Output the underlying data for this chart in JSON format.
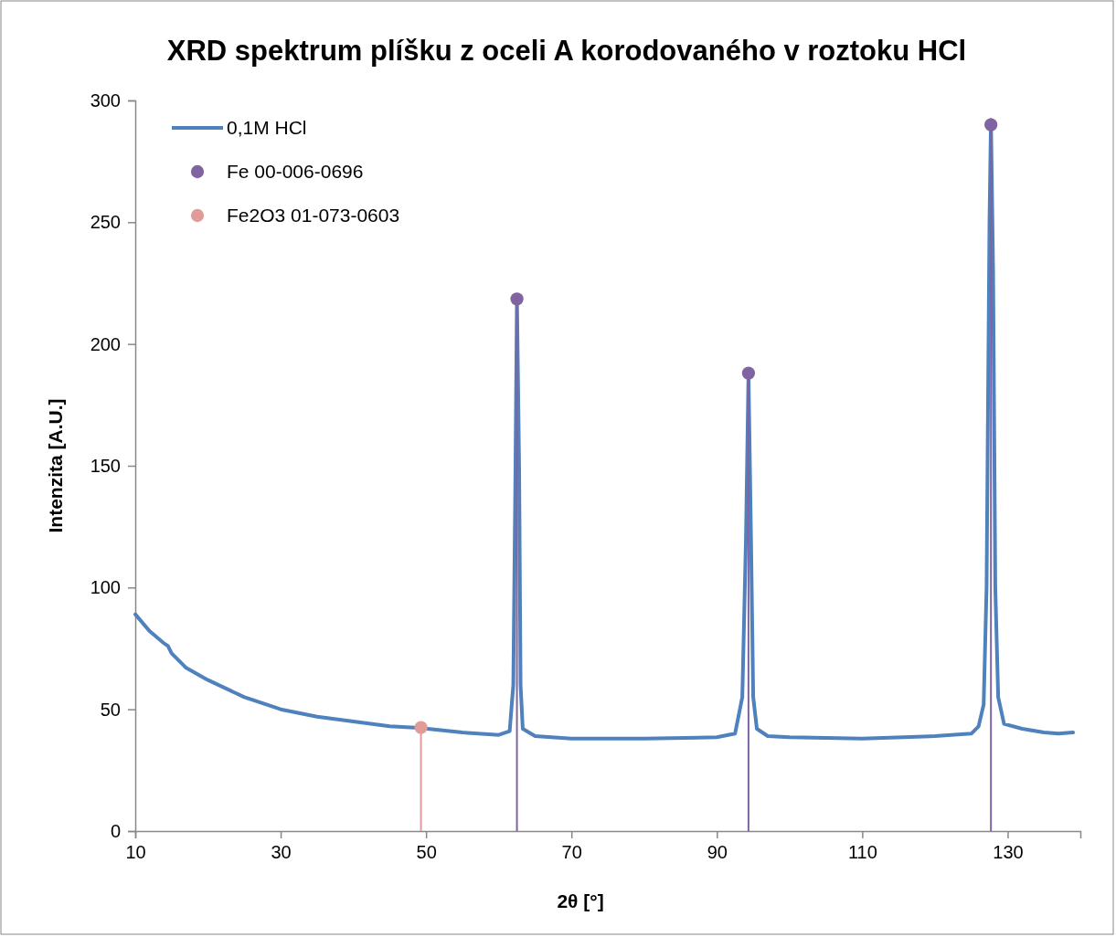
{
  "chart_data": {
    "type": "line",
    "title": "XRD spektrum plíšku z oceli A korodovaného v roztoku HCl",
    "xlabel": "2θ [°]",
    "ylabel": "Intenzita [A.U.]",
    "xlim": [
      10,
      140
    ],
    "xticks": [
      10,
      30,
      50,
      70,
      90,
      110,
      130
    ],
    "ylim": [
      0,
      300
    ],
    "yticks": [
      0,
      50,
      100,
      150,
      200,
      250,
      300
    ],
    "grid": false,
    "legend": "top left",
    "series": [
      {
        "name": "0,1M HCl",
        "color": "#4f81bd",
        "marker": "none",
        "line_style": "solid",
        "x": [
          10,
          12,
          14,
          14.5,
          15,
          17,
          20,
          25,
          30,
          35,
          40,
          45,
          49,
          55,
          60,
          61.5,
          62,
          62.3,
          62.5,
          62.8,
          63,
          63.3,
          65,
          70,
          80,
          90,
          92.5,
          93.5,
          94,
          94.35,
          94.7,
          95,
          95.5,
          97,
          100,
          110,
          120,
          125,
          126,
          126.7,
          127.1,
          127.5,
          127.7,
          128,
          128.3,
          128.7,
          129.5,
          132,
          135,
          137,
          139
        ],
        "values": [
          89,
          82,
          77,
          76,
          73,
          67,
          62,
          55,
          50,
          47,
          45,
          43,
          42.4,
          40.5,
          39.5,
          41,
          60,
          150,
          219,
          150,
          60,
          42,
          39,
          38,
          38,
          38.5,
          40,
          55,
          120,
          188,
          120,
          55,
          42,
          39,
          38.5,
          38,
          39,
          40,
          43,
          52,
          100,
          250,
          292,
          230,
          100,
          55,
          44,
          42,
          40.5,
          40,
          40.5
        ]
      },
      {
        "name": "Fe 00-006-0696",
        "type": "lollipop",
        "color": "#8064a2",
        "marker": "circle",
        "x": [
          62.5,
          94.35,
          127.7
        ],
        "values": [
          218.5,
          188,
          290
        ]
      },
      {
        "name": "Fe2O3 01-073-0603",
        "type": "lollipop",
        "color": "#e09c98",
        "marker": "circle",
        "x": [
          49.3
        ],
        "values": [
          42.5
        ]
      }
    ]
  }
}
